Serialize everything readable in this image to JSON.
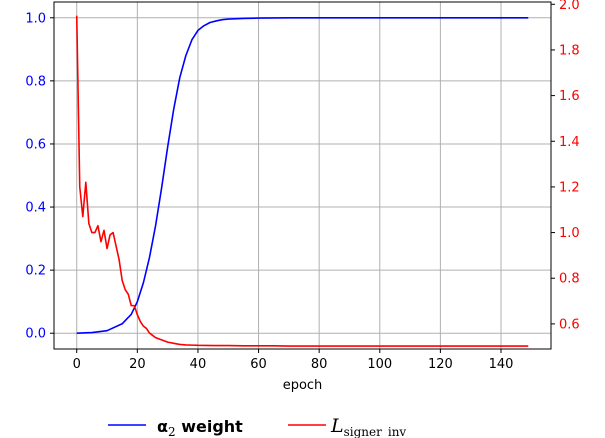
{
  "chart_data": {
    "type": "line",
    "xlabel": "epoch",
    "xlim": [
      -7.5,
      156.5
    ],
    "x_ticks": [
      0,
      20,
      40,
      60,
      80,
      100,
      120,
      140
    ],
    "y_left": {
      "lim": [
        -0.05,
        1.05
      ],
      "ticks": [
        "0.0",
        "0.2",
        "0.4",
        "0.6",
        "0.8",
        "1.0"
      ],
      "color": "#0000ff"
    },
    "y_right": {
      "lim": [
        0.49,
        2.01
      ],
      "ticks": [
        "0.6",
        "0.8",
        "1.0",
        "1.2",
        "1.4",
        "1.6",
        "1.8",
        "2.0"
      ],
      "color": "#ff0000"
    },
    "grid": true,
    "legend_position": "bottom-center",
    "series": [
      {
        "legend_main": "α",
        "legend_sub": "2",
        "legend_rest": " weight",
        "axis": "left",
        "color": "#0000ff",
        "x": [
          0,
          5,
          10,
          15,
          18,
          20,
          22,
          24,
          26,
          28,
          30,
          32,
          34,
          36,
          38,
          40,
          42,
          44,
          46,
          48,
          50,
          55,
          60,
          70,
          80,
          100,
          120,
          149
        ],
        "y": [
          0.0,
          0.002,
          0.008,
          0.03,
          0.06,
          0.1,
          0.16,
          0.24,
          0.34,
          0.46,
          0.59,
          0.71,
          0.81,
          0.88,
          0.93,
          0.96,
          0.975,
          0.985,
          0.99,
          0.994,
          0.996,
          0.998,
          0.999,
          1.0,
          1.0,
          1.0,
          1.0,
          1.0
        ]
      },
      {
        "legend_main": "L",
        "legend_sub": "signer_inv",
        "legend_rest": "",
        "axis": "right",
        "color": "#ff0000",
        "x": [
          0,
          1,
          2,
          3,
          4,
          5,
          6,
          7,
          8,
          9,
          10,
          11,
          12,
          13,
          14,
          15,
          16,
          17,
          18,
          19,
          20,
          21,
          22,
          23,
          24,
          25,
          26,
          28,
          30,
          32,
          34,
          36,
          38,
          40,
          45,
          50,
          55,
          60,
          65,
          70,
          80,
          90,
          100,
          110,
          120,
          130,
          140,
          149
        ],
        "y": [
          1.95,
          1.2,
          1.07,
          1.22,
          1.04,
          1.0,
          1.0,
          1.03,
          0.96,
          1.01,
          0.93,
          0.99,
          1.0,
          0.94,
          0.88,
          0.79,
          0.75,
          0.73,
          0.68,
          0.68,
          0.64,
          0.61,
          0.59,
          0.58,
          0.56,
          0.55,
          0.54,
          0.53,
          0.52,
          0.515,
          0.51,
          0.508,
          0.507,
          0.506,
          0.505,
          0.505,
          0.504,
          0.504,
          0.504,
          0.503,
          0.503,
          0.503,
          0.503,
          0.503,
          0.503,
          0.503,
          0.503,
          0.503
        ]
      }
    ]
  }
}
